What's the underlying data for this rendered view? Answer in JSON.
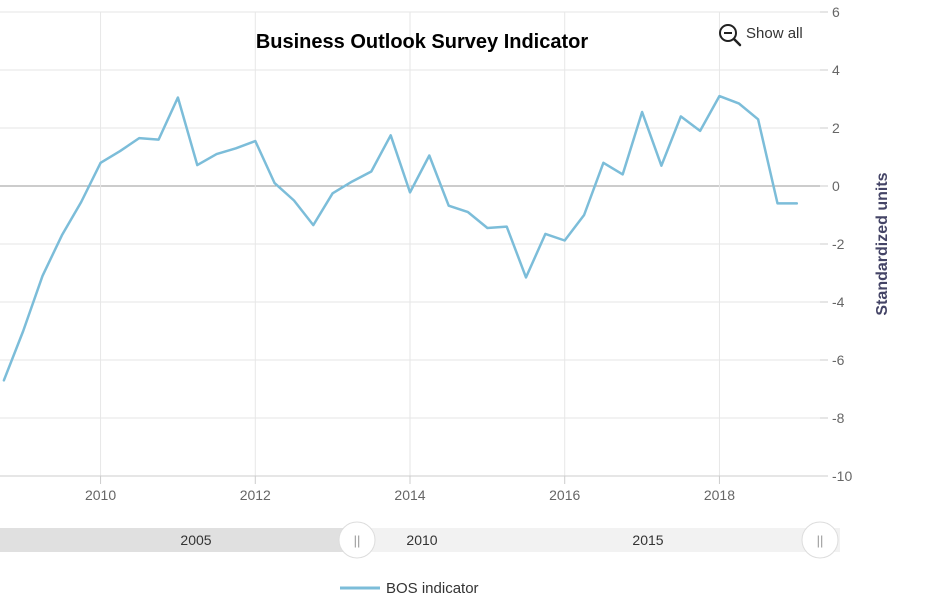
{
  "chart_data": {
    "type": "line",
    "title": "Business Outlook Survey Indicator",
    "xlabel": "",
    "ylabel": "Standardized units",
    "xlim": [
      2008.7,
      2019.3
    ],
    "ylim": [
      -10,
      6
    ],
    "yticks": [
      6,
      4,
      2,
      0,
      -2,
      -4,
      -6,
      -8,
      -10
    ],
    "xticks": [
      2010,
      2012,
      2014,
      2016,
      2018
    ],
    "legend_position": "bottom-center",
    "series": [
      {
        "name": "BOS indicator",
        "color": "#7cbdd9",
        "x": [
          2008.75,
          2009.0,
          2009.25,
          2009.5,
          2009.75,
          2010.0,
          2010.25,
          2010.5,
          2010.75,
          2011.0,
          2011.25,
          2011.5,
          2011.75,
          2012.0,
          2012.25,
          2012.5,
          2012.75,
          2013.0,
          2013.25,
          2013.5,
          2013.75,
          2014.0,
          2014.25,
          2014.5,
          2014.75,
          2015.0,
          2015.25,
          2015.5,
          2015.75,
          2016.0,
          2016.25,
          2016.5,
          2016.75,
          2017.0,
          2017.25,
          2017.5,
          2017.75,
          2018.0,
          2018.25,
          2018.5,
          2018.75,
          2019.0
        ],
        "values": [
          -6.7,
          -5.0,
          -3.1,
          -1.7,
          -0.55,
          0.8,
          1.2,
          1.65,
          1.6,
          3.05,
          0.72,
          1.1,
          1.3,
          1.55,
          0.1,
          -0.5,
          -1.35,
          -0.25,
          0.15,
          0.5,
          1.75,
          -0.22,
          1.05,
          -0.68,
          -0.9,
          -1.45,
          -1.4,
          -3.15,
          -1.65,
          -1.88,
          -1.0,
          0.8,
          0.4,
          2.55,
          0.7,
          2.4,
          1.9,
          3.1,
          2.85,
          2.3,
          -0.6,
          -0.6
        ]
      }
    ]
  },
  "controls": {
    "show_all_label": "Show all",
    "magnifier_icon": "zoom-out-icon"
  },
  "navigator": {
    "labels": [
      "2005",
      "2010",
      "2015"
    ],
    "handle_glyph": "||"
  },
  "colors": {
    "line": "#7cbdd9",
    "grid": "#e6e6e6",
    "zero_line": "#999999",
    "navigator_mask": "#e0e0e0",
    "navigator_track": "#f2f2f2"
  }
}
